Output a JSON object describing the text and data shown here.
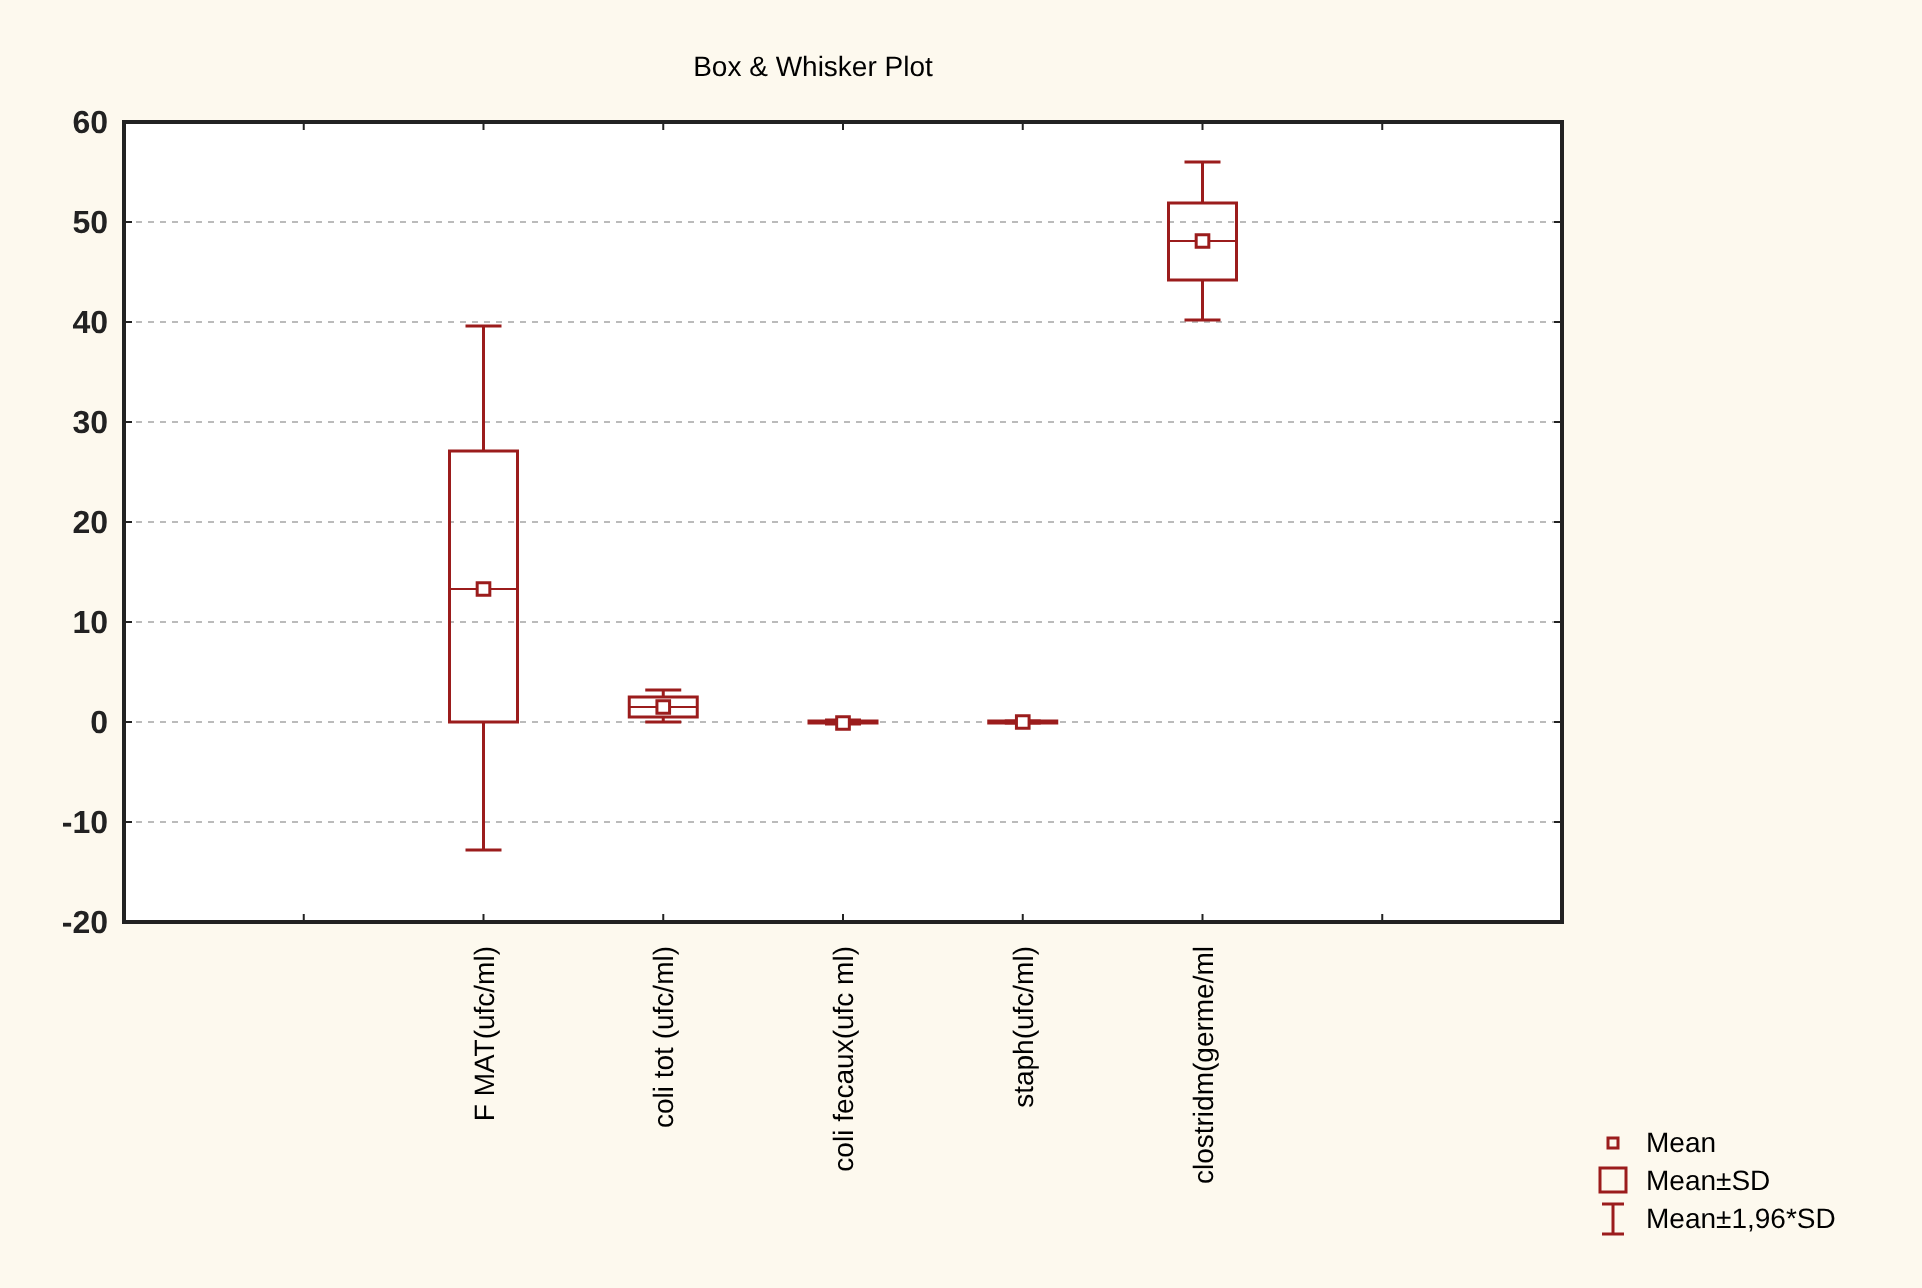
{
  "chart_data": {
    "type": "box",
    "title": "Box & Whisker Plot",
    "categories": [
      null,
      "F MAT(ufc/ml)",
      "coli tot (ufc/ml)",
      "coli fecaux(ufc ml)",
      "staph(ufc/ml)",
      "clostridm(germe/ml",
      null
    ],
    "color": "#9b1c1c",
    "boxes": [
      null,
      {
        "low": -12.8,
        "q1": 0,
        "median": 13.3,
        "q3": 27.1,
        "high": 39.6,
        "mean": 13.3
      },
      {
        "low": 0,
        "q1": 0.5,
        "median": 1.5,
        "q3": 2.5,
        "high": 3.2,
        "mean": 1.5
      },
      {
        "low": -0.2,
        "q1": -0.1,
        "median": -0.1,
        "q3": 0.1,
        "high": 0.2,
        "mean": -0.1
      },
      {
        "low": -0.1,
        "q1": -0.1,
        "median": 0,
        "q3": 0.1,
        "high": 0.1,
        "mean": 0
      },
      {
        "low": 40.2,
        "q1": 44.2,
        "median": 48.1,
        "q3": 51.9,
        "high": 56,
        "mean": 48.1
      },
      null
    ],
    "ylim": [
      -20,
      60
    ],
    "yticks": [
      -20,
      -10,
      0,
      10,
      20,
      30,
      40,
      50,
      60
    ],
    "grid": "y",
    "annotations": [
      "Mean",
      "Mean±SD",
      "Mean±1,96*SD"
    ]
  }
}
